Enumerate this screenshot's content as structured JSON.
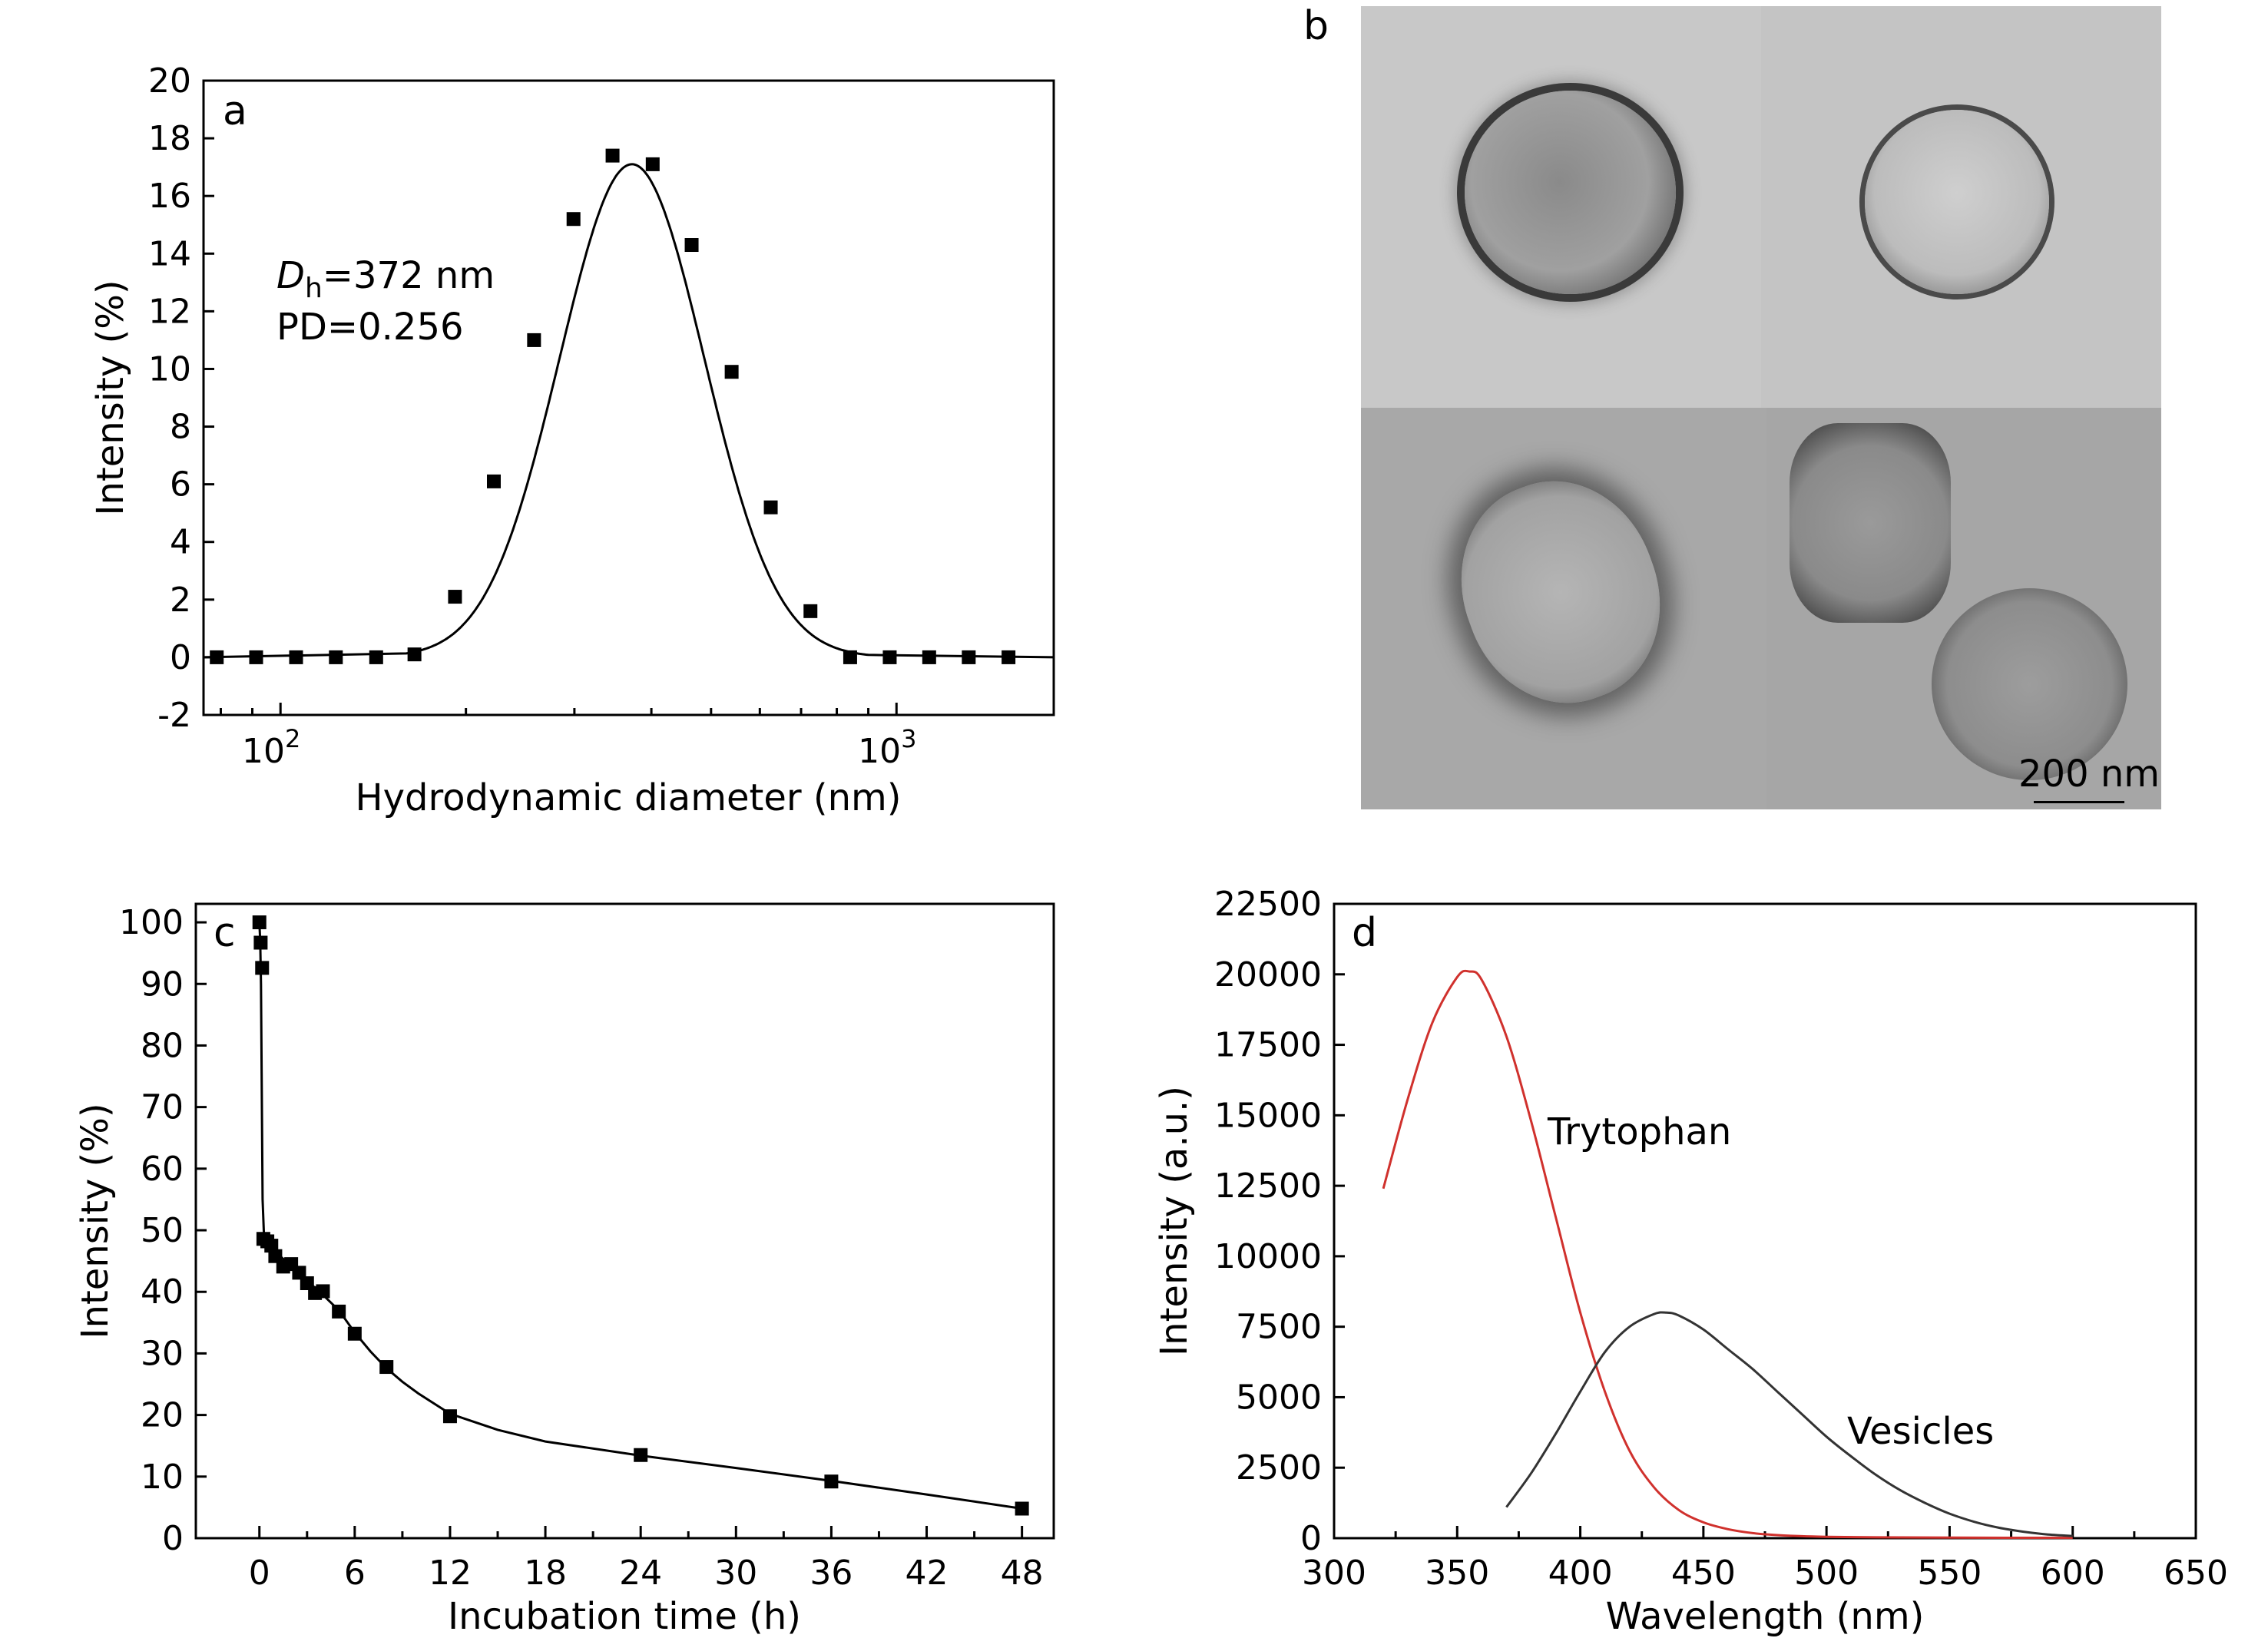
{
  "chart_data": [
    {
      "panel": "a",
      "type": "scatter",
      "xlabel": "Hydrodynamic diameter  (nm)",
      "ylabel": "Intensity (%)",
      "xscale": "log",
      "xlim": [
        75,
        1800
      ],
      "ylim": [
        -2,
        20
      ],
      "yticks": [
        "-2",
        "0",
        "2",
        "4",
        "6",
        "8",
        "10",
        "12",
        "14",
        "16",
        "18",
        "20"
      ],
      "xticks": [
        {
          "value": 100,
          "base": "10",
          "exp": "2"
        },
        {
          "value": 1000,
          "base": "10",
          "exp": "3"
        }
      ],
      "annotation": {
        "d_symbol": "D",
        "d_sub": "h",
        "d_value": "=372 nm",
        "pd": "PD=0.256"
      },
      "x": [
        78.8,
        91.3,
        106,
        123,
        143,
        165,
        192,
        222,
        258,
        299,
        346,
        402,
        465,
        540,
        625,
        725,
        841,
        975,
        1130,
        1310,
        1520
      ],
      "y": [
        0,
        0,
        0,
        0,
        0,
        0.1,
        2.1,
        6.1,
        11.0,
        15.2,
        17.4,
        17.1,
        14.3,
        9.9,
        5.2,
        1.6,
        0,
        0,
        0,
        0,
        0
      ],
      "fit": {
        "type": "gaussian-log",
        "peak_x": 372,
        "peak_y": 17.1
      }
    },
    {
      "panel": "b",
      "type": "image",
      "scale_label": "200 nm"
    },
    {
      "panel": "c",
      "type": "scatter",
      "xlabel": "Incubation time (h)",
      "ylabel": "Intensity (%)",
      "xlim": [
        -4,
        50
      ],
      "ylim": [
        0,
        103
      ],
      "xticks": [
        "0",
        "6",
        "12",
        "18",
        "24",
        "30",
        "36",
        "42",
        "48"
      ],
      "yticks": [
        "0",
        "10",
        "20",
        "30",
        "40",
        "50",
        "60",
        "70",
        "80",
        "90",
        "100"
      ],
      "x": [
        0,
        0.08,
        0.17,
        0.25,
        0.5,
        0.75,
        1,
        1.5,
        2,
        2.5,
        3,
        3.5,
        4,
        5,
        6,
        8,
        12,
        24,
        36,
        48
      ],
      "y": [
        100,
        96.7,
        92.6,
        48.6,
        48.2,
        47.5,
        45.8,
        44.1,
        44.5,
        43.1,
        41.4,
        39.8,
        40.1,
        36.8,
        33.2,
        27.8,
        19.8,
        13.5,
        9.2,
        4.8
      ]
    },
    {
      "panel": "d",
      "type": "line",
      "xlabel": "Wavelength (nm)",
      "ylabel": "Intensity (a.u.)",
      "xlim": [
        300,
        650
      ],
      "ylim": [
        0,
        22500
      ],
      "xticks": [
        "300",
        "350",
        "400",
        "450",
        "500",
        "550",
        "600",
        "650"
      ],
      "yticks": [
        "0",
        "2500",
        "5000",
        "7500",
        "10000",
        "12500",
        "15000",
        "17500",
        "20000",
        "22500"
      ],
      "series": [
        {
          "name": "Trytophan",
          "color": "#d0312d",
          "x": [
            320,
            330,
            340,
            350,
            355,
            360,
            370,
            380,
            390,
            400,
            410,
            420,
            430,
            440,
            450,
            460,
            470,
            480,
            490,
            500,
            520,
            550,
            600
          ],
          "y": [
            12400,
            15600,
            18300,
            19900,
            20100,
            19800,
            17800,
            14800,
            11400,
            8000,
            5200,
            3100,
            1800,
            1000,
            560,
            320,
            180,
            110,
            70,
            50,
            30,
            20,
            10
          ]
        },
        {
          "name": "Vesicles",
          "color": "#333333",
          "x": [
            370,
            380,
            390,
            400,
            410,
            420,
            430,
            435,
            440,
            450,
            460,
            470,
            480,
            490,
            500,
            510,
            520,
            530,
            540,
            550,
            560,
            570,
            580,
            590,
            600
          ],
          "y": [
            1100,
            2300,
            3700,
            5200,
            6600,
            7500,
            7950,
            8000,
            7900,
            7400,
            6700,
            6000,
            5200,
            4400,
            3600,
            2900,
            2250,
            1700,
            1250,
            870,
            580,
            370,
            230,
            130,
            80
          ]
        }
      ]
    }
  ]
}
